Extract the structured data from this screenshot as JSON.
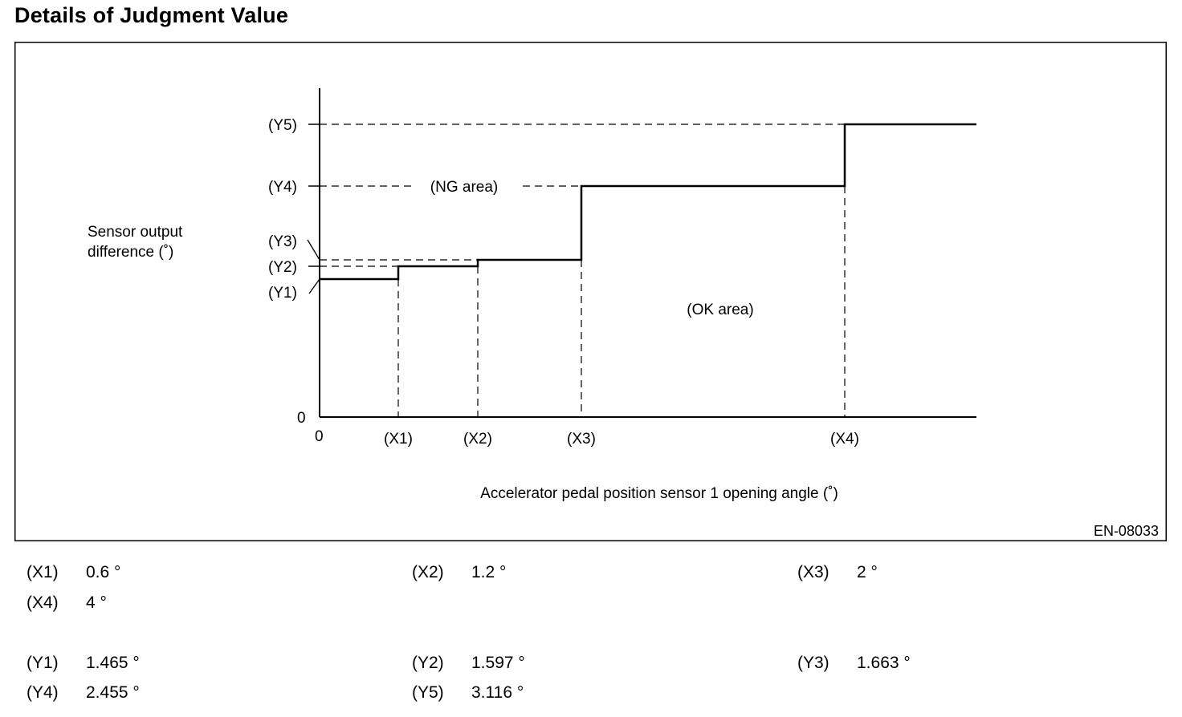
{
  "title": "Details of Judgment Value",
  "figure_code": "EN-08033",
  "ylabel_line1": "Sensor output",
  "ylabel_line2": "difference (˚)",
  "xlabel": "Accelerator pedal position sensor 1 opening angle (˚)",
  "area_labels": {
    "ng": "(NG area)",
    "ok": "(OK area)"
  },
  "origin_x": "0",
  "origin_y": "0",
  "x_marks": [
    "(X1)",
    "(X2)",
    "(X3)",
    "(X4)"
  ],
  "y_marks": [
    "(Y1)",
    "(Y2)",
    "(Y3)",
    "(Y4)",
    "(Y5)"
  ],
  "values": {
    "x": [
      {
        "key": "(X1)",
        "value": "0.6 °"
      },
      {
        "key": "(X2)",
        "value": "1.2 °"
      },
      {
        "key": "(X3)",
        "value": "2 °"
      },
      {
        "key": "(X4)",
        "value": "4 °"
      }
    ],
    "y": [
      {
        "key": "(Y1)",
        "value": "1.465 °"
      },
      {
        "key": "(Y2)",
        "value": "1.597 °"
      },
      {
        "key": "(Y3)",
        "value": "1.663 °"
      },
      {
        "key": "(Y4)",
        "value": "2.455 °"
      },
      {
        "key": "(Y5)",
        "value": "3.116 °"
      }
    ]
  },
  "colors": {
    "line": "#000000",
    "background": "#ffffff"
  }
}
